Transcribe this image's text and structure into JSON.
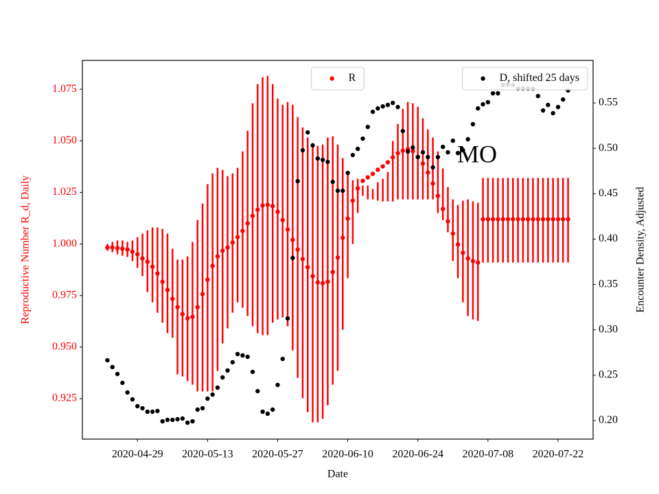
{
  "chart_data": {
    "type": "scatter",
    "xlabel": "Date",
    "ylabel": "Reproductive Number R_d, Daily",
    "y2label": "Encounter Density, Adjusted",
    "annotation": "MO",
    "x": [
      "2020-04-23",
      "2020-04-24",
      "2020-04-25",
      "2020-04-26",
      "2020-04-27",
      "2020-04-28",
      "2020-04-29",
      "2020-04-30",
      "2020-05-01",
      "2020-05-02",
      "2020-05-03",
      "2020-05-04",
      "2020-05-05",
      "2020-05-06",
      "2020-05-07",
      "2020-05-08",
      "2020-05-09",
      "2020-05-10",
      "2020-05-11",
      "2020-05-12",
      "2020-05-13",
      "2020-05-14",
      "2020-05-15",
      "2020-05-16",
      "2020-05-17",
      "2020-05-18",
      "2020-05-19",
      "2020-05-20",
      "2020-05-21",
      "2020-05-22",
      "2020-05-23",
      "2020-05-24",
      "2020-05-25",
      "2020-05-26",
      "2020-05-27",
      "2020-05-28",
      "2020-05-29",
      "2020-05-30",
      "2020-05-31",
      "2020-06-01",
      "2020-06-02",
      "2020-06-03",
      "2020-06-04",
      "2020-06-05",
      "2020-06-06",
      "2020-06-07",
      "2020-06-08",
      "2020-06-09",
      "2020-06-10",
      "2020-06-11",
      "2020-06-12",
      "2020-06-13",
      "2020-06-14",
      "2020-06-15",
      "2020-06-16",
      "2020-06-17",
      "2020-06-18",
      "2020-06-19",
      "2020-06-20",
      "2020-06-21",
      "2020-06-22",
      "2020-06-23",
      "2020-06-24",
      "2020-06-25",
      "2020-06-26",
      "2020-06-27",
      "2020-06-28",
      "2020-06-29",
      "2020-06-30",
      "2020-07-01",
      "2020-07-02",
      "2020-07-03",
      "2020-07-04",
      "2020-07-05",
      "2020-07-06",
      "2020-07-07",
      "2020-07-08",
      "2020-07-09",
      "2020-07-10",
      "2020-07-11",
      "2020-07-12",
      "2020-07-13",
      "2020-07-14",
      "2020-07-15",
      "2020-07-16",
      "2020-07-17",
      "2020-07-18",
      "2020-07-19",
      "2020-07-20",
      "2020-07-21",
      "2020-07-22",
      "2020-07-23",
      "2020-07-24"
    ],
    "xlim": [
      "2020-04-18",
      "2020-07-29"
    ],
    "xticks": [
      "2020-04-29",
      "2020-05-13",
      "2020-05-27",
      "2020-06-10",
      "2020-06-24",
      "2020-07-08",
      "2020-07-22"
    ],
    "ylim": [
      0.9054,
      1.089
    ],
    "yticks": [
      0.925,
      {
        "value": 0.95,
        "label": "0.950"
      },
      0.975,
      {
        "value": 1.0,
        "label": "1.000"
      },
      1.025,
      {
        "value": 1.05,
        "label": "1.050"
      },
      1.075
    ],
    "y2lim": [
      0.1796,
      0.5969
    ],
    "y2ticks": [
      {
        "value": 0.2,
        "label": "0.20"
      },
      0.25,
      {
        "value": 0.3,
        "label": "0.30"
      },
      0.35,
      {
        "value": 0.4,
        "label": "0.40"
      },
      0.45,
      {
        "value": 0.5,
        "label": "0.50"
      },
      0.55
    ],
    "series": [
      {
        "name": "R",
        "color": "#ff0000",
        "axis": "y",
        "legend": "upper center",
        "values": [
          0.9983,
          0.9983,
          0.998,
          0.9977,
          0.9973,
          0.9963,
          0.995,
          0.993,
          0.9914,
          0.989,
          0.9857,
          0.9817,
          0.9777,
          0.9734,
          0.9694,
          0.966,
          0.964,
          0.9647,
          0.9694,
          0.9757,
          0.9827,
          0.9894,
          0.994,
          0.9967,
          0.9983,
          1.0007,
          1.0033,
          1.0063,
          1.01,
          1.0136,
          1.0166,
          1.0186,
          1.019,
          1.0183,
          1.0156,
          1.0116,
          1.007,
          1.002,
          0.9973,
          0.9927,
          0.9887,
          0.9844,
          0.9814,
          0.981,
          0.9817,
          0.9864,
          0.9934,
          1.003,
          1.0123,
          1.021,
          1.027,
          1.0306,
          1.0323,
          1.034,
          1.036,
          1.0376,
          1.0396,
          1.042,
          1.044,
          1.0452,
          1.046,
          1.045,
          1.0422,
          1.039,
          1.0346,
          1.0293,
          1.0233,
          1.017,
          1.011,
          1.005,
          0.9997,
          0.9957,
          0.993,
          0.9917,
          0.991,
          1.012,
          1.012,
          1.012,
          1.012,
          1.012,
          1.012,
          1.012,
          1.012,
          1.012,
          1.012,
          1.012,
          1.012,
          1.012,
          1.012,
          1.012,
          1.012,
          1.012,
          1.012
        ],
        "upper": [
          1.0,
          1.001,
          1.0017,
          1.0017,
          1.001,
          1.0017,
          1.0033,
          1.005,
          1.0066,
          1.008,
          1.008,
          1.0073,
          1.005,
          0.9977,
          0.9924,
          0.9924,
          0.994,
          1.001,
          1.0116,
          1.0196,
          1.029,
          1.0342,
          1.0369,
          1.0359,
          1.0329,
          1.0342,
          1.0369,
          1.0449,
          1.0549,
          1.0682,
          1.0775,
          1.0808,
          1.0815,
          1.0775,
          1.0705,
          1.0675,
          1.0688,
          1.0675,
          1.0615,
          1.0565,
          1.0516,
          1.0489,
          1.0476,
          1.0482,
          1.0516,
          1.0522,
          1.0482,
          1.0416,
          1.0349,
          1.0309,
          1.0316,
          1.0283,
          1.0283,
          1.0266,
          1.0299,
          1.0316,
          1.0349,
          1.0499,
          1.0582,
          1.0655,
          1.0688,
          1.0682,
          1.0665,
          1.0609,
          1.0555,
          1.0516,
          1.0449,
          1.0366,
          1.0276,
          1.0216,
          1.019,
          1.021,
          1.0216,
          1.0206,
          1.02,
          1.032,
          1.032,
          1.032,
          1.032,
          1.032,
          1.032,
          1.032,
          1.032,
          1.032,
          1.032,
          1.032,
          1.032,
          1.032,
          1.032,
          1.032,
          1.032,
          1.032,
          1.032
        ],
        "lower": [
          0.9967,
          0.996,
          0.995,
          0.9943,
          0.9937,
          0.9917,
          0.9884,
          0.9844,
          0.9767,
          0.9717,
          0.9667,
          0.9618,
          0.9568,
          0.9545,
          0.9368,
          0.9358,
          0.9335,
          0.9318,
          0.9285,
          0.9285,
          0.9285,
          0.9285,
          0.9385,
          0.9518,
          0.9591,
          0.9667,
          0.9717,
          0.9691,
          0.9651,
          0.9601,
          0.9568,
          0.9558,
          0.9558,
          0.9618,
          0.9634,
          0.9644,
          0.9601,
          0.9484,
          0.9351,
          0.9252,
          0.9185,
          0.9135,
          0.9135,
          0.9152,
          0.9218,
          0.9318,
          0.9385,
          0.9584,
          0.9834,
          1.0,
          1.015,
          1.0233,
          1.0216,
          1.0216,
          1.021,
          1.0206,
          1.0206,
          1.0206,
          1.0216,
          1.0216,
          1.0216,
          1.0216,
          1.0216,
          1.0216,
          1.0216,
          1.0216,
          1.015,
          1.0116,
          1.0057,
          0.9917,
          0.9834,
          0.9717,
          0.9651,
          0.9634,
          0.9627,
          0.991,
          0.991,
          0.991,
          0.991,
          0.991,
          0.991,
          0.991,
          0.991,
          0.991,
          0.991,
          0.991,
          0.991,
          0.991,
          0.991,
          0.991,
          0.991,
          0.991,
          0.991
        ]
      },
      {
        "name": "D, shifted 25 days",
        "color": "#000000",
        "axis": "y2",
        "legend": "upper right",
        "values": [
          0.2665,
          0.259,
          0.2514,
          0.2416,
          0.231,
          0.2234,
          0.2159,
          0.2136,
          0.2098,
          0.2098,
          0.2106,
          0.1992,
          0.2008,
          0.2008,
          0.2015,
          0.2023,
          0.1977,
          0.1992,
          0.2121,
          0.2136,
          0.2242,
          0.2287,
          0.2363,
          0.2476,
          0.2552,
          0.2643,
          0.2733,
          0.2718,
          0.2703,
          0.2537,
          0.2325,
          0.2098,
          0.2076,
          0.2121,
          0.2393,
          0.268,
          0.3126,
          0.3792,
          0.4638,
          0.4979,
          0.5175,
          0.5032,
          0.4888,
          0.4873,
          0.485,
          0.4631,
          0.4533,
          0.4533,
          0.4729,
          0.4926,
          0.4994,
          0.5107,
          0.5236,
          0.5402,
          0.544,
          0.5462,
          0.5478,
          0.55,
          0.5455,
          0.519,
          0.4964,
          0.5009,
          0.4903,
          0.4956,
          0.4903,
          0.479,
          0.4903,
          0.5016,
          0.4956,
          0.5084,
          0.4948,
          0.4979,
          0.51,
          0.5266,
          0.544,
          0.5485,
          0.5508,
          0.5606,
          0.5606,
          0.5697,
          0.5704,
          0.5697,
          0.5659,
          0.5659,
          0.5659,
          0.5659,
          0.5576,
          0.5417,
          0.5478,
          0.5387,
          0.5455,
          0.5538,
          0.5637
        ]
      }
    ]
  }
}
